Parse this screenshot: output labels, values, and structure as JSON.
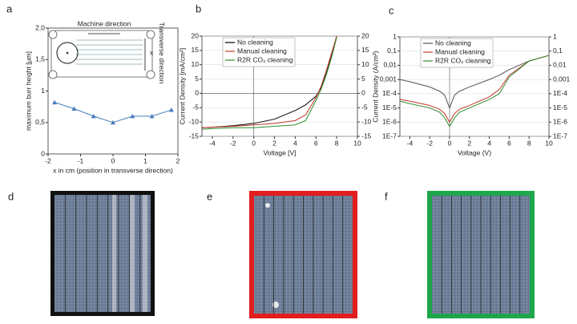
{
  "panel_labels": [
    "a",
    "b",
    "c",
    "d",
    "e",
    "f"
  ],
  "chart_data": [
    {
      "type": "line",
      "ylabel": "maximum burr height [µm]",
      "xlabel": "x in cm (position in transverse direction)",
      "annotations": [
        "Machine direction",
        "Transverse direction",
        "x"
      ],
      "x": [
        -1.8,
        -1.2,
        -0.6,
        0,
        0.6,
        1.2,
        1.8
      ],
      "values": [
        0.82,
        0.72,
        0.6,
        0.5,
        0.6,
        0.6,
        0.7
      ],
      "color": "#4a7ebb",
      "marker": "triangle",
      "xlim": [
        -2,
        2
      ],
      "xticks": [
        -2,
        -1,
        0,
        1,
        2
      ],
      "ylim": [
        0,
        2
      ],
      "yticks": [
        0,
        {
          "value": 0.5,
          "label": "0,5"
        },
        1,
        {
          "value": 1.5,
          "label": "1,5"
        },
        {
          "value": 2,
          "label": "2,0"
        }
      ],
      "grid": false
    },
    {
      "type": "line",
      "ylabel": "Current Density [mA/cm²]",
      "xlabel": "Voltage [V]",
      "x": [
        -5,
        -4,
        -2,
        0,
        2,
        4,
        5,
        6,
        6.5,
        7,
        7.5,
        8
      ],
      "series": [
        {
          "name": "No cleaning",
          "color": "#000000",
          "values": [
            -12,
            -11.8,
            -11.3,
            -10.5,
            -9,
            -6,
            -4,
            -1,
            2,
            7,
            13,
            20
          ]
        },
        {
          "name": "Manual cleaning",
          "color": "#c0392b",
          "values": [
            -12,
            -11.8,
            -11.5,
            -11,
            -10.5,
            -9.5,
            -7.5,
            -1.5,
            2.5,
            8,
            14,
            20
          ]
        },
        {
          "name": "R2R CO₂ cleaning",
          "color": "#2e8b2e",
          "values": [
            -12.5,
            -12.3,
            -12,
            -12,
            -11.5,
            -11,
            -9.5,
            -2.5,
            1.5,
            6.5,
            12.5,
            19.5
          ]
        }
      ],
      "xlim": [
        -5,
        10
      ],
      "xticks": [
        -4,
        -2,
        0,
        2,
        4,
        6,
        8,
        10
      ],
      "ylim": [
        -15,
        20
      ],
      "yticks": [
        -15,
        -10,
        -5,
        0,
        5,
        10,
        15,
        20
      ],
      "y2lim": [
        -15,
        20
      ],
      "y2ticks": [
        -15,
        -10,
        -5,
        0,
        5,
        10,
        15,
        20
      ],
      "grid": true,
      "legend": "upper left"
    },
    {
      "type": "line",
      "ylabel": "Current Density (A/cm²)",
      "xlabel": "Voltage (V)",
      "x": [
        -5,
        -4,
        -2,
        -1,
        -0.5,
        0,
        0.5,
        1,
        2,
        4,
        5,
        6,
        8,
        10
      ],
      "series": [
        {
          "name": "No cleaning",
          "color": "#555555",
          "values": [
            0.001,
            0.0007,
            0.0003,
            0.00015,
            8e-05,
            1e-05,
            8e-05,
            0.00015,
            0.0003,
            0.001,
            0.002,
            0.005,
            0.02,
            0.05
          ]
        },
        {
          "name": "Manual cleaning",
          "color": "#c0392b",
          "values": [
            4e-05,
            3e-05,
            1.5e-05,
            8e-06,
            4e-06,
            1e-06,
            4e-06,
            8e-06,
            1.5e-05,
            6e-05,
            0.0002,
            0.002,
            0.02,
            0.05
          ]
        },
        {
          "name": "R2R CO₂ cleaning",
          "color": "#2e8b2e",
          "values": [
            3e-05,
            2e-05,
            1e-05,
            5e-06,
            2e-06,
            5e-07,
            2e-06,
            5e-06,
            1e-05,
            4e-05,
            0.0001,
            0.0015,
            0.02,
            0.05
          ]
        }
      ],
      "xlim": [
        -5,
        10
      ],
      "xticks": [
        -4,
        -2,
        0,
        2,
        4,
        6,
        8,
        10
      ],
      "ylog": true,
      "ylim": [
        1e-07,
        1
      ],
      "yticks": [
        {
          "value": 1e-07,
          "label": "1E-7"
        },
        {
          "value": 1e-06,
          "label": "1E-6"
        },
        {
          "value": 1e-05,
          "label": "1E-5"
        },
        {
          "value": 0.0001,
          "label": "1E-4"
        },
        {
          "value": 0.001,
          "label": "0,001"
        },
        {
          "value": 0.01,
          "label": "0,01"
        },
        {
          "value": 0.1,
          "label": "0,1"
        },
        1
      ],
      "y2lim": [
        1e-07,
        1
      ],
      "y2ticks": [
        {
          "value": 1e-07,
          "label": "1E-7"
        },
        {
          "value": 1e-06,
          "label": "1E-6"
        },
        {
          "value": 1e-05,
          "label": "1E-5"
        },
        {
          "value": 0.0001,
          "label": "1E-4"
        },
        {
          "value": 0.001,
          "label": "0,001"
        },
        {
          "value": 0.01,
          "label": "0,01"
        },
        {
          "value": 0.1,
          "label": "0,1"
        },
        1
      ],
      "grid": true,
      "legend": "upper left"
    }
  ]
}
